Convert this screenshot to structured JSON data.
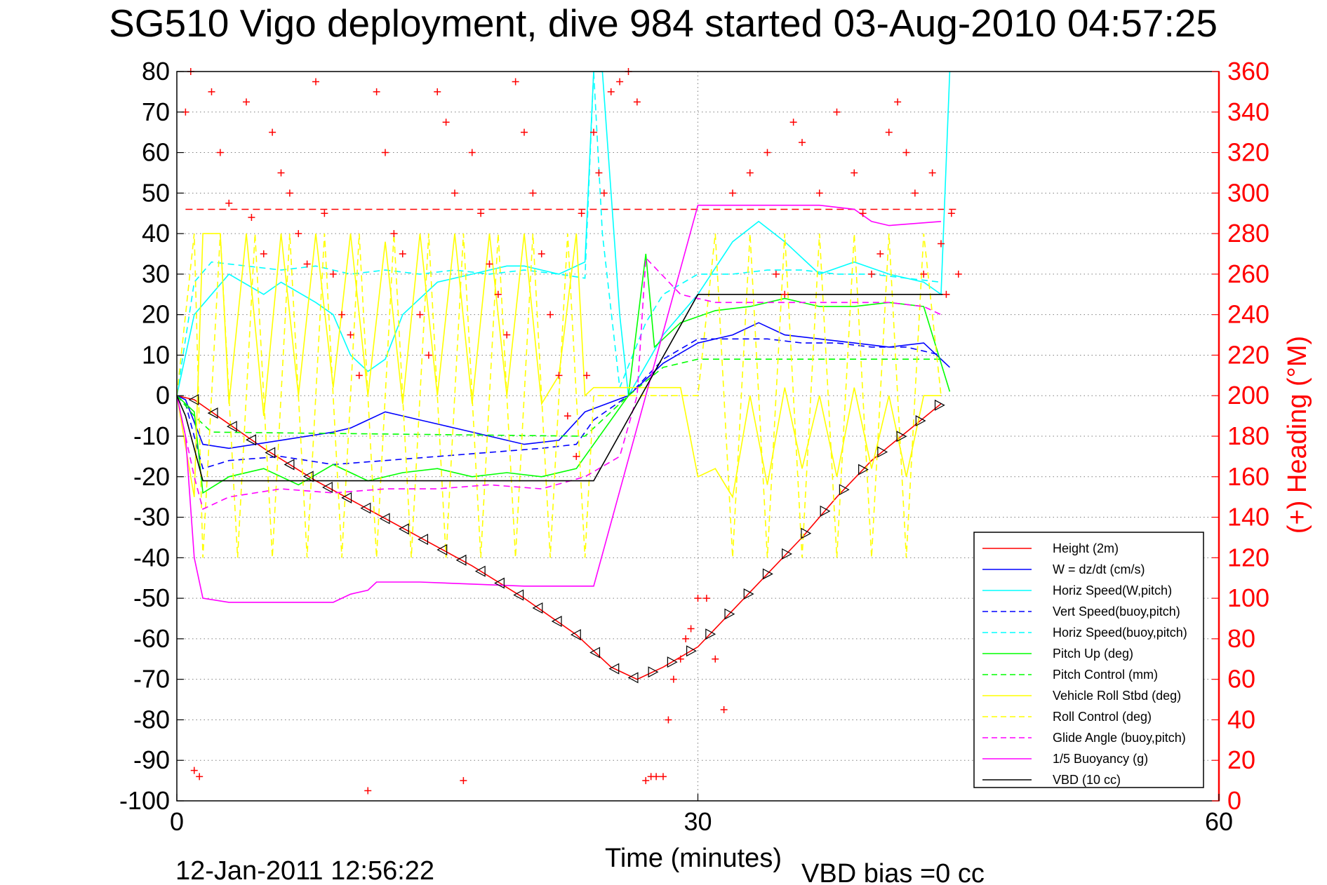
{
  "chart_data": {
    "type": "line",
    "title": "SG510 Vigo deployment, dive 984 started 03-Aug-2010 04:57:25",
    "xlabel": "Time (minutes)",
    "ylabel": "",
    "ylabel_right": "(+) Heading (°M)",
    "xlim": [
      0,
      60
    ],
    "ylim": [
      -100,
      80
    ],
    "ylim_right": [
      0,
      360
    ],
    "x_ticks": [
      "0",
      "30",
      "60"
    ],
    "y_ticks": [
      "80",
      "70",
      "60",
      "50",
      "40",
      "30",
      "20",
      "10",
      "0",
      "-10",
      "-20",
      "-30",
      "-40",
      "-50",
      "-60",
      "-70",
      "-80",
      "-90",
      "-100"
    ],
    "y_ticks_right": [
      "360",
      "340",
      "320",
      "300",
      "280",
      "260",
      "240",
      "220",
      "200",
      "180",
      "160",
      "140",
      "120",
      "100",
      "80",
      "60",
      "40",
      "20",
      "0"
    ],
    "grid": true,
    "legend_position": "lower-right",
    "footer_left": "12-Jan-2011 12:56:22",
    "footer_right": "VBD bias =0 cc",
    "series": [
      {
        "name": "Height (2m)",
        "color": "#ff0000",
        "dash": "solid",
        "x": [
          0,
          1,
          3,
          5,
          8,
          11,
          14,
          17,
          20,
          23,
          25,
          26.5,
          28,
          30,
          32,
          34,
          36,
          38,
          40,
          42,
          44
        ],
        "y": [
          0,
          -1,
          -7,
          -13,
          -21,
          -28,
          -35,
          -42,
          -50,
          -59,
          -67,
          -70,
          -67,
          -62,
          -53,
          -44,
          -35,
          -25,
          -16,
          -9,
          -2
        ]
      },
      {
        "name": "W = dz/dt (cm/s)",
        "color": "#0000ff",
        "dash": "solid",
        "x": [
          0,
          0.5,
          1.5,
          3,
          6,
          9,
          10,
          12,
          14,
          16,
          18,
          20,
          22,
          23.5,
          26,
          28,
          30,
          32,
          33.5,
          35,
          37,
          39,
          41,
          43,
          44.5
        ],
        "y": [
          0,
          -1,
          -12,
          -13,
          -11,
          -9,
          -8,
          -4,
          -6,
          -8,
          -10,
          -12,
          -11,
          -4,
          0,
          8,
          13,
          15,
          18,
          15,
          14,
          13,
          12,
          13,
          7
        ]
      },
      {
        "name": "Horiz Speed(W,pitch)",
        "color": "#00ffff",
        "dash": "solid",
        "x": [
          0,
          1,
          2,
          3,
          5,
          6,
          8,
          9,
          10,
          11,
          12,
          13,
          15,
          17,
          19,
          20,
          22,
          23.5,
          24,
          24.5,
          25,
          25.5,
          26,
          28,
          30,
          32,
          33.5,
          35,
          37,
          39,
          41,
          43,
          44,
          44.5
        ],
        "y": [
          0,
          20,
          25,
          30,
          25,
          28,
          23,
          20,
          10,
          6,
          9,
          20,
          28,
          30,
          32,
          32,
          30,
          33,
          80,
          80,
          50,
          20,
          0,
          15,
          25,
          38,
          43,
          38,
          30,
          33,
          30,
          28,
          25,
          80
        ]
      },
      {
        "name": "Vert Speed(buoy,pitch)",
        "color": "#0000ff",
        "dash": "dashed",
        "x": [
          0,
          0.5,
          1.5,
          3,
          6,
          9,
          12,
          15,
          18,
          21,
          23,
          24,
          26,
          28,
          30,
          32,
          34,
          36,
          38,
          40,
          42,
          44
        ],
        "y": [
          0,
          -2,
          -18,
          -16,
          -15,
          -17,
          -16,
          -15,
          -14,
          -13,
          -12,
          -6,
          0,
          9,
          14,
          14,
          14,
          13,
          13,
          12,
          12,
          10
        ]
      },
      {
        "name": "Horiz Speed(buoy,pitch)",
        "color": "#00ffff",
        "dash": "dashed",
        "x": [
          0,
          1,
          2,
          4,
          6,
          8,
          10,
          12,
          14,
          16,
          18,
          20,
          22,
          23.5,
          24,
          24.5,
          25.5,
          27,
          28,
          30,
          32,
          34,
          36,
          38,
          40,
          42,
          44
        ],
        "y": [
          0,
          28,
          33,
          32,
          31,
          32,
          30,
          31,
          30,
          31,
          30,
          31,
          30,
          29,
          80,
          40,
          2,
          18,
          25,
          30,
          30,
          31,
          31,
          30,
          30,
          29,
          28
        ]
      },
      {
        "name": "Pitch Up (deg)",
        "color": "#00ff00",
        "dash": "solid",
        "x": [
          0,
          1,
          1.5,
          3,
          5,
          7,
          9,
          11,
          13,
          15,
          17,
          19,
          21,
          23,
          26,
          27,
          27.5,
          29,
          31,
          33,
          35,
          37,
          39,
          41,
          43,
          44.5
        ],
        "y": [
          0,
          -4,
          -24,
          -20,
          -18,
          -22,
          -17,
          -21,
          -19,
          -18,
          -20,
          -19,
          -20,
          -18,
          0,
          35,
          12,
          18,
          21,
          22,
          24,
          22,
          22,
          23,
          22,
          1
        ]
      },
      {
        "name": "Pitch Control (mm)",
        "color": "#00ff00",
        "dash": "dashed",
        "x": [
          0,
          1,
          2,
          23.5,
          26,
          28,
          30,
          44
        ],
        "y": [
          0,
          -5,
          -9,
          -10,
          0,
          7,
          9,
          9
        ]
      },
      {
        "name": "Vehicle Roll Stbd (deg)",
        "color": "#ffff00",
        "dash": "solid",
        "x": [
          0,
          1,
          1.5,
          2.5,
          3,
          4,
          5,
          6,
          7,
          8,
          9,
          10,
          11,
          12,
          13,
          14,
          15,
          16,
          17,
          18,
          19,
          20,
          21,
          22,
          23,
          23.5,
          24,
          25,
          26,
          27,
          28,
          29,
          30,
          31,
          32,
          33,
          34,
          35,
          36,
          37,
          38,
          39,
          40,
          41,
          42,
          43,
          44
        ],
        "y": [
          0,
          -25,
          40,
          40,
          -2,
          40,
          -5,
          40,
          0,
          40,
          2,
          40,
          0,
          38,
          -2,
          40,
          0,
          40,
          -2,
          40,
          0,
          40,
          -2,
          5,
          40,
          0,
          2,
          2,
          2,
          2,
          2,
          2,
          -20,
          -18,
          -25,
          0,
          -22,
          2,
          -18,
          0,
          -20,
          2,
          -18,
          0,
          -20,
          0,
          0
        ]
      },
      {
        "name": "Roll Control (deg)",
        "color": "#ffff00",
        "dash": "dashed",
        "x": [
          0,
          1,
          1.5,
          2.5,
          3.5,
          4.5,
          5.5,
          6.5,
          7.5,
          8.5,
          9.5,
          10.5,
          11.5,
          12.5,
          13.5,
          14.5,
          15.5,
          16.5,
          17.5,
          18.5,
          19.5,
          20.5,
          21.5,
          22.5,
          23.5,
          24,
          27,
          30,
          31,
          32,
          33,
          34,
          35,
          36,
          37,
          38,
          39,
          40,
          41,
          42,
          43,
          44
        ],
        "y": [
          0,
          40,
          -40,
          40,
          -40,
          40,
          -40,
          40,
          -40,
          40,
          -40,
          40,
          -40,
          40,
          -40,
          40,
          -40,
          40,
          -40,
          40,
          -40,
          40,
          -40,
          40,
          -40,
          0,
          0,
          0,
          40,
          -40,
          40,
          -40,
          40,
          -40,
          40,
          -40,
          40,
          -40,
          40,
          -40,
          40,
          0
        ]
      },
      {
        "name": "Glide Angle (buoy,pitch)",
        "color": "#ff00ff",
        "dash": "dashed",
        "x": [
          0,
          1,
          1.5,
          3,
          6,
          9,
          12,
          15,
          18,
          21,
          23.5,
          25.5,
          26.5,
          27,
          29,
          31,
          33,
          35,
          37,
          39,
          41,
          43,
          44
        ],
        "y": [
          0,
          -20,
          -28,
          -25,
          -23,
          -24,
          -23,
          -23,
          -22,
          -23,
          -20,
          -15,
          0,
          34,
          25,
          23,
          23,
          23,
          23,
          23,
          23,
          22,
          20
        ]
      },
      {
        "name": "1/5 Buoyancy (g)",
        "color": "#ff00ff",
        "dash": "solid",
        "x": [
          0,
          0.5,
          1,
          1.5,
          3,
          9,
          10,
          11,
          11.5,
          14,
          20,
          24,
          30,
          32,
          37,
          39,
          40,
          41,
          44
        ],
        "y": [
          0,
          -10,
          -40,
          -50,
          -51,
          -51,
          -49,
          -48,
          -46,
          -46,
          -47,
          -47,
          47,
          47,
          47,
          46,
          43,
          42,
          43
        ]
      },
      {
        "name": "VBD (10 cc)",
        "color": "#000000",
        "dash": "solid",
        "x": [
          0,
          0.5,
          1.5,
          24,
          30,
          44.5
        ],
        "y": [
          0,
          -5,
          -21,
          -21,
          25,
          25
        ]
      }
    ],
    "heading_points": {
      "name": "(+) Heading",
      "color": "#ff0000",
      "x": [
        0.5,
        0.8,
        1,
        1.3,
        2,
        2.5,
        3,
        4,
        4.3,
        5,
        5.5,
        6,
        6.5,
        7,
        7.5,
        8,
        8.5,
        9,
        9.5,
        10,
        10.5,
        11,
        11.5,
        12,
        12.5,
        13,
        14,
        14.5,
        15,
        15.5,
        16,
        16.5,
        17,
        17.5,
        18,
        18.5,
        19,
        19.5,
        20,
        20.5,
        21,
        21.5,
        22,
        22.5,
        23,
        23.3,
        23.6,
        24,
        24.3,
        24.6,
        25,
        25.5,
        26,
        26.5,
        27,
        27.3,
        27.6,
        28,
        28.3,
        28.6,
        29,
        29.3,
        29.6,
        30,
        30.5,
        31,
        31.5,
        32,
        33,
        34,
        34.5,
        35,
        35.5,
        36,
        37,
        38,
        39,
        39.5,
        40,
        40.5,
        41,
        41.5,
        42,
        42.5,
        43,
        43.5,
        44,
        44.3,
        44.6,
        45
      ],
      "y": [
        340,
        360,
        15,
        12,
        350,
        320,
        295,
        345,
        288,
        270,
        330,
        310,
        300,
        280,
        265,
        355,
        290,
        260,
        240,
        230,
        210,
        5,
        350,
        320,
        280,
        270,
        240,
        220,
        350,
        335,
        300,
        10,
        320,
        290,
        265,
        250,
        230,
        355,
        330,
        300,
        270,
        240,
        210,
        190,
        170,
        290,
        210,
        330,
        310,
        300,
        350,
        355,
        360,
        345,
        10,
        12,
        12,
        12,
        40,
        60,
        70,
        80,
        85,
        100,
        100,
        70,
        45,
        300,
        310,
        320,
        260,
        250,
        335,
        325,
        300,
        340,
        310,
        290,
        260,
        270,
        330,
        345,
        320,
        300,
        260,
        310,
        275,
        250,
        290,
        260
      ]
    }
  },
  "legend": [
    "Height (2m)",
    "W = dz/dt (cm/s)",
    "Horiz Speed(W,pitch)",
    "Vert Speed(buoy,pitch)",
    "Horiz Speed(buoy,pitch)",
    "Pitch Up (deg)",
    "Pitch Control (mm)",
    "Vehicle Roll Stbd (deg)",
    "Roll Control (deg)",
    "Glide Angle (buoy,pitch)",
    "1/5 Buoyancy (g)",
    "VBD (10 cc)"
  ],
  "reference_line": {
    "value": 46,
    "color": "#ff0000",
    "dash": "dashed"
  }
}
